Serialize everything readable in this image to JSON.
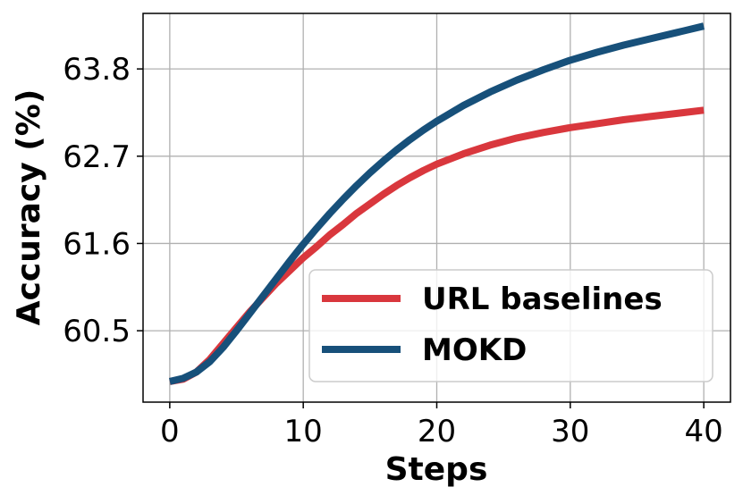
{
  "chart_data": {
    "type": "line",
    "title": "",
    "xlabel": "Steps",
    "ylabel": "Accuracy (%)",
    "xlim": [
      -2,
      42
    ],
    "ylim": [
      59.6,
      64.5
    ],
    "xticks": [
      0,
      10,
      20,
      30,
      40
    ],
    "xtick_labels": [
      "0",
      "10",
      "20",
      "30",
      "40"
    ],
    "yticks": [
      60.5,
      61.6,
      62.7,
      63.8
    ],
    "ytick_labels": [
      "60.5",
      "61.6",
      "62.7",
      "63.8"
    ],
    "grid": true,
    "legend_position": "lower-right",
    "series": [
      {
        "name": "URL baselines",
        "color": "#d9373d",
        "x": [
          0,
          1,
          2,
          3,
          4,
          5,
          6,
          7,
          8,
          9,
          10,
          11,
          12,
          13,
          14,
          15,
          16,
          17,
          18,
          19,
          20,
          22,
          24,
          26,
          28,
          30,
          32,
          34,
          36,
          38,
          40
        ],
        "y": [
          59.86,
          59.89,
          59.98,
          60.14,
          60.34,
          60.54,
          60.74,
          60.92,
          61.1,
          61.26,
          61.42,
          61.56,
          61.71,
          61.84,
          61.98,
          62.1,
          62.22,
          62.33,
          62.43,
          62.52,
          62.6,
          62.73,
          62.84,
          62.93,
          63.0,
          63.06,
          63.11,
          63.16,
          63.2,
          63.24,
          63.28
        ]
      },
      {
        "name": "MOKD",
        "color": "#17507a",
        "x": [
          0,
          1,
          2,
          3,
          4,
          5,
          6,
          7,
          8,
          9,
          10,
          11,
          12,
          13,
          14,
          15,
          16,
          17,
          18,
          19,
          20,
          22,
          24,
          26,
          28,
          30,
          32,
          34,
          36,
          38,
          40
        ],
        "y": [
          59.86,
          59.9,
          59.98,
          60.11,
          60.29,
          60.5,
          60.72,
          60.94,
          61.16,
          61.38,
          61.59,
          61.79,
          61.98,
          62.16,
          62.33,
          62.49,
          62.64,
          62.78,
          62.91,
          63.03,
          63.14,
          63.34,
          63.51,
          63.66,
          63.79,
          63.91,
          64.01,
          64.1,
          64.18,
          64.26,
          64.34
        ]
      }
    ]
  }
}
